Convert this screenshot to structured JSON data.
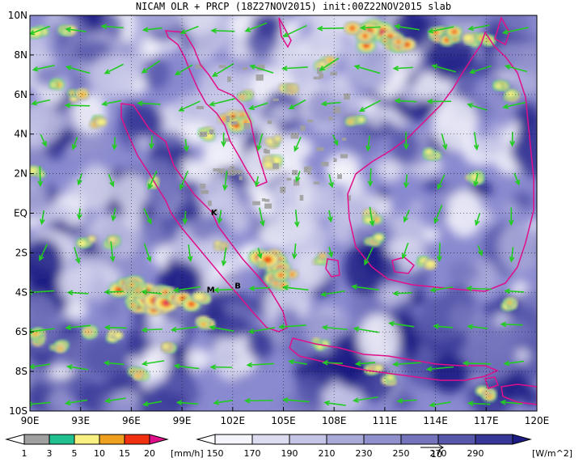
{
  "title": "NICAM OLR + PRCP (18Z27NOV2015) init:00Z22NOV2015 slab",
  "map": {
    "lon_range": [
      90,
      120
    ],
    "lat_range": [
      -10,
      10
    ],
    "x_ticks": [
      {
        "lon": 90,
        "label": "90E"
      },
      {
        "lon": 93,
        "label": "93E"
      },
      {
        "lon": 96,
        "label": "96E"
      },
      {
        "lon": 99,
        "label": "99E"
      },
      {
        "lon": 102,
        "label": "102E"
      },
      {
        "lon": 105,
        "label": "105E"
      },
      {
        "lon": 108,
        "label": "108E"
      },
      {
        "lon": 111,
        "label": "111E"
      },
      {
        "lon": 114,
        "label": "114E"
      },
      {
        "lon": 117,
        "label": "117E"
      },
      {
        "lon": 120,
        "label": "120E"
      }
    ],
    "y_ticks": [
      {
        "lat": 10,
        "label": "10N"
      },
      {
        "lat": 8,
        "label": "8N"
      },
      {
        "lat": 6,
        "label": "6N"
      },
      {
        "lat": 4,
        "label": "4N"
      },
      {
        "lat": 2,
        "label": "2N"
      },
      {
        "lat": 0,
        "label": "EQ"
      },
      {
        "lat": -2,
        "label": "2S"
      },
      {
        "lat": -4,
        "label": "4S"
      },
      {
        "lat": -6,
        "label": "6S"
      },
      {
        "lat": -8,
        "label": "8S"
      },
      {
        "lat": -10,
        "label": "10S"
      }
    ],
    "place_markers": [
      {
        "label": "K",
        "lon": 100.9,
        "lat": -0.1
      },
      {
        "label": "M",
        "lon": 100.7,
        "lat": -4.0
      },
      {
        "label": "B",
        "lon": 102.3,
        "lat": -3.8
      }
    ],
    "grid": true
  },
  "colorbars": {
    "precip": {
      "unit": "[mm/h]",
      "tick_labels": [
        "1",
        "3",
        "5",
        "10",
        "15",
        "20"
      ],
      "colors": [
        "#a0a0a0",
        "#20c090",
        "#f8f080",
        "#f0a020",
        "#f03010",
        "#e0108a"
      ]
    },
    "olr": {
      "unit": "[W/m^2]",
      "tick_labels": [
        "150",
        "170",
        "190",
        "210",
        "230",
        "250",
        "270",
        "290"
      ],
      "colors": [
        "#f4f4fb",
        "#dcdcf0",
        "#c4c4e6",
        "#aaaad9",
        "#9090cc",
        "#7474bd",
        "#5656aa",
        "#383898",
        "#1c1c84"
      ],
      "reference_vector": "10"
    }
  },
  "colors": {
    "coastline": "#e0108a",
    "wind_arrows": "#22cc22",
    "grid": "#000000"
  }
}
